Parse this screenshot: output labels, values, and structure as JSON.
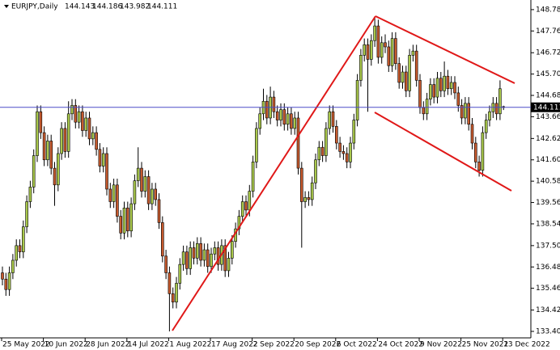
{
  "chart_data": {
    "type": "candlestick",
    "title": "EURJPY,Daily",
    "categories": [
      "25 May 2022",
      null,
      null,
      null,
      null,
      null,
      null,
      null,
      null,
      null,
      null,
      null,
      "10 Jun 2022",
      null,
      null,
      null,
      null,
      null,
      null,
      null,
      null,
      null,
      null,
      null,
      "28 Jun 2022",
      null,
      null,
      null,
      null,
      null,
      null,
      null,
      null,
      null,
      null,
      null,
      "14 Jul 2022",
      null,
      null,
      null,
      null,
      null,
      null,
      null,
      null,
      null,
      null,
      null,
      "1 Aug 2022",
      null,
      null,
      null,
      null,
      null,
      null,
      null,
      null,
      null,
      null,
      null,
      "17 Aug 2022",
      null,
      null,
      null,
      null,
      null,
      null,
      null,
      null,
      null,
      null,
      null,
      "2 Sep 2022",
      null,
      null,
      null,
      null,
      null,
      null,
      null,
      null,
      null,
      null,
      null,
      "20 Sep 2022",
      null,
      null,
      null,
      null,
      null,
      null,
      null,
      null,
      null,
      null,
      null,
      "6 Oct 2022",
      null,
      null,
      null,
      null,
      null,
      null,
      null,
      null,
      null,
      null,
      null,
      "24 Oct 2022",
      null,
      null,
      null,
      null,
      null,
      null,
      null,
      null,
      null,
      null,
      null,
      "9 Nov 2022",
      null,
      null,
      null,
      null,
      null,
      null,
      null,
      null,
      null,
      null,
      null,
      "25 Nov 2022",
      null,
      null,
      null,
      null,
      null,
      null,
      null,
      null,
      null,
      null,
      null,
      "13 Dec 2022"
    ],
    "open": [
      136.2,
      135.9,
      135.4,
      136.2,
      136.8,
      137.5,
      137.2,
      138.4,
      139.6,
      140.3,
      141.8,
      143.9,
      142.9,
      141.6,
      142.5,
      141.2,
      140.4,
      141.9,
      143.1,
      142.0,
      143.8,
      144.2,
      143.4,
      143.9,
      143.0,
      143.6,
      142.6,
      142.9,
      142.1,
      141.3,
      141.9,
      140.2,
      139.6,
      140.4,
      138.9,
      138.1,
      139.3,
      138.2,
      139.5,
      140.6,
      141.2,
      140.1,
      140.8,
      139.5,
      140.2,
      139.7,
      138.6,
      137.0,
      136.2,
      135.2,
      134.8,
      135.7,
      136.6,
      137.2,
      136.4,
      137.4,
      136.9,
      137.6,
      136.8,
      137.3,
      136.5,
      137.1,
      137.4,
      136.6,
      137.5,
      136.3,
      136.9,
      137.7,
      138.3,
      138.9,
      139.6,
      139.2,
      140.1,
      141.5,
      143.1,
      143.8,
      144.4,
      143.6,
      144.6,
      143.9,
      143.5,
      144.0,
      143.3,
      143.8,
      143.1,
      143.6,
      141.2,
      139.6,
      139.8,
      139.7,
      140.5,
      141.6,
      142.2,
      141.8,
      143.1,
      143.9,
      143.2,
      142.4,
      142.0,
      141.9,
      141.5,
      142.4,
      143.5,
      145.4,
      146.6,
      147.1,
      146.4,
      147.3,
      148.0,
      146.5,
      147.2,
      147.0,
      146.1,
      147.4,
      146.2,
      145.3,
      145.8,
      144.9,
      146.6,
      146.8,
      145.4,
      144.1,
      143.8,
      144.5,
      145.2,
      144.6,
      145.5,
      144.9,
      145.6,
      145.0,
      145.3,
      144.8,
      144.2,
      143.6,
      144.3,
      143.3,
      142.4,
      141.5,
      141.1,
      142.9,
      143.5,
      143.9,
      144.3,
      143.8,
      144.143
    ],
    "high": [
      136.5,
      136.2,
      136.5,
      137.1,
      137.8,
      137.8,
      138.7,
      139.9,
      140.6,
      142.1,
      144.2,
      144.2,
      143.2,
      142.8,
      142.8,
      141.5,
      142.2,
      143.4,
      143.4,
      144.4,
      144.5,
      144.5,
      144.2,
      144.2,
      143.9,
      143.9,
      143.2,
      143.2,
      142.4,
      142.2,
      142.2,
      140.5,
      140.7,
      140.7,
      139.2,
      139.6,
      139.6,
      139.8,
      140.9,
      142.2,
      141.5,
      141.1,
      141.1,
      140.5,
      140.5,
      140.0,
      138.9,
      137.3,
      136.5,
      135.5,
      136.0,
      136.9,
      137.5,
      137.5,
      137.7,
      137.7,
      137.9,
      137.9,
      137.6,
      137.6,
      137.4,
      137.7,
      137.7,
      137.8,
      137.8,
      137.2,
      138.0,
      138.6,
      139.2,
      139.9,
      139.9,
      140.4,
      141.8,
      143.4,
      144.1,
      145.0,
      144.7,
      145.1,
      144.9,
      144.2,
      144.3,
      144.3,
      144.1,
      144.1,
      143.9,
      143.9,
      141.5,
      140.1,
      140.1,
      140.8,
      141.9,
      142.5,
      142.5,
      143.4,
      144.2,
      144.2,
      143.5,
      142.7,
      142.3,
      142.2,
      142.7,
      143.8,
      145.7,
      146.9,
      147.4,
      147.4,
      147.6,
      148.4,
      148.3,
      147.5,
      147.6,
      147.3,
      147.7,
      147.7,
      146.5,
      146.1,
      146.1,
      146.9,
      147.1,
      147.1,
      145.7,
      144.4,
      144.8,
      145.5,
      145.5,
      145.8,
      145.8,
      146.3,
      145.9,
      145.6,
      145.6,
      145.1,
      144.5,
      144.6,
      144.6,
      143.6,
      142.7,
      141.8,
      143.2,
      143.8,
      144.2,
      144.6,
      144.6,
      145.4,
      144.186
    ],
    "low": [
      135.6,
      135.1,
      135.1,
      135.9,
      136.5,
      136.9,
      136.9,
      138.1,
      139.3,
      140.0,
      141.5,
      142.6,
      141.3,
      141.3,
      140.9,
      139.4,
      140.1,
      141.6,
      141.7,
      141.7,
      143.5,
      143.1,
      143.1,
      142.7,
      142.7,
      142.3,
      142.3,
      141.8,
      141.0,
      141.0,
      139.9,
      139.3,
      139.3,
      138.6,
      137.8,
      137.8,
      137.9,
      137.9,
      139.2,
      140.3,
      139.8,
      139.8,
      139.2,
      139.2,
      139.4,
      138.3,
      136.7,
      135.9,
      133.4,
      134.5,
      134.5,
      135.4,
      136.3,
      136.1,
      136.1,
      136.6,
      136.6,
      136.5,
      136.5,
      136.2,
      136.2,
      136.8,
      136.3,
      136.3,
      136.0,
      136.0,
      136.6,
      137.4,
      138.0,
      138.6,
      138.9,
      138.9,
      139.8,
      141.2,
      142.8,
      143.5,
      143.3,
      143.3,
      143.6,
      143.2,
      143.2,
      143.0,
      143.0,
      142.8,
      142.8,
      140.9,
      137.4,
      139.3,
      139.4,
      139.4,
      140.2,
      141.3,
      141.5,
      141.5,
      142.8,
      142.9,
      142.1,
      141.7,
      141.6,
      141.2,
      141.2,
      142.1,
      143.2,
      145.1,
      146.3,
      143.9,
      146.1,
      147.0,
      146.2,
      146.2,
      146.7,
      145.8,
      145.8,
      145.9,
      145.0,
      145.0,
      144.6,
      144.6,
      146.3,
      145.1,
      143.8,
      143.5,
      143.5,
      144.2,
      144.3,
      144.3,
      144.6,
      144.6,
      144.7,
      144.7,
      144.5,
      143.9,
      143.3,
      143.3,
      143.0,
      142.1,
      141.2,
      140.8,
      140.8,
      142.6,
      143.2,
      143.6,
      143.5,
      143.5,
      143.982
    ],
    "close": [
      135.9,
      135.4,
      136.2,
      136.8,
      137.5,
      137.2,
      138.4,
      139.6,
      140.3,
      141.8,
      143.9,
      142.9,
      141.6,
      142.5,
      141.2,
      140.4,
      141.9,
      143.1,
      142.0,
      143.8,
      144.2,
      143.4,
      143.9,
      143.0,
      143.6,
      142.6,
      142.9,
      142.1,
      141.3,
      141.9,
      140.2,
      139.6,
      140.4,
      138.9,
      138.1,
      139.3,
      138.2,
      139.5,
      140.6,
      141.2,
      140.1,
      140.8,
      139.5,
      140.2,
      139.7,
      138.6,
      137.0,
      136.2,
      135.2,
      134.8,
      135.7,
      136.6,
      137.2,
      136.4,
      137.4,
      136.9,
      137.6,
      136.8,
      137.3,
      136.5,
      137.1,
      137.4,
      136.6,
      137.5,
      136.3,
      136.9,
      137.7,
      138.3,
      138.9,
      139.6,
      139.2,
      140.1,
      141.5,
      143.1,
      143.8,
      144.4,
      143.6,
      144.6,
      143.9,
      143.5,
      144.0,
      143.3,
      143.8,
      143.1,
      143.6,
      141.2,
      139.6,
      139.8,
      139.7,
      140.5,
      141.6,
      142.2,
      141.8,
      143.1,
      143.9,
      143.2,
      142.4,
      142.0,
      141.9,
      141.5,
      142.4,
      143.5,
      145.4,
      146.6,
      147.1,
      146.4,
      147.3,
      148.0,
      146.5,
      147.2,
      147.0,
      146.1,
      147.4,
      146.2,
      145.3,
      145.8,
      144.9,
      146.6,
      146.8,
      145.4,
      144.1,
      143.8,
      144.5,
      145.2,
      144.6,
      145.5,
      144.9,
      145.6,
      145.0,
      145.3,
      144.8,
      144.2,
      143.6,
      144.3,
      143.3,
      142.4,
      141.5,
      141.1,
      142.9,
      143.5,
      143.9,
      144.3,
      143.8,
      145.0,
      144.111
    ],
    "up_color": "#a9c84b",
    "down_color": "#c65a2e",
    "price_line_color": "#4b4bc8",
    "ylim": [
      133.09,
      149.24
    ],
    "yticks": [
      {
        "value": 133.4,
        "label": "133.400"
      },
      {
        "value": 134.42,
        "label": "134.420"
      },
      {
        "value": 135.46,
        "label": "135.460"
      },
      {
        "value": 136.48,
        "label": "136.480"
      },
      {
        "value": 137.5,
        "label": "137.500"
      },
      {
        "value": 138.54,
        "label": "138.540"
      },
      {
        "value": 139.56,
        "label": "139.560"
      },
      {
        "value": 140.58,
        "label": "140.580"
      },
      {
        "value": 141.6,
        "label": "141.600"
      },
      {
        "value": 142.62,
        "label": "142.620"
      },
      {
        "value": 143.66,
        "label": "143.660"
      },
      {
        "value": 144.68,
        "label": "144.680"
      },
      {
        "value": 145.7,
        "label": "145.700"
      },
      {
        "value": 146.72,
        "label": "146.720"
      },
      {
        "value": 147.76,
        "label": "147.760"
      },
      {
        "value": 148.78,
        "label": "148.780"
      }
    ]
  }
}
